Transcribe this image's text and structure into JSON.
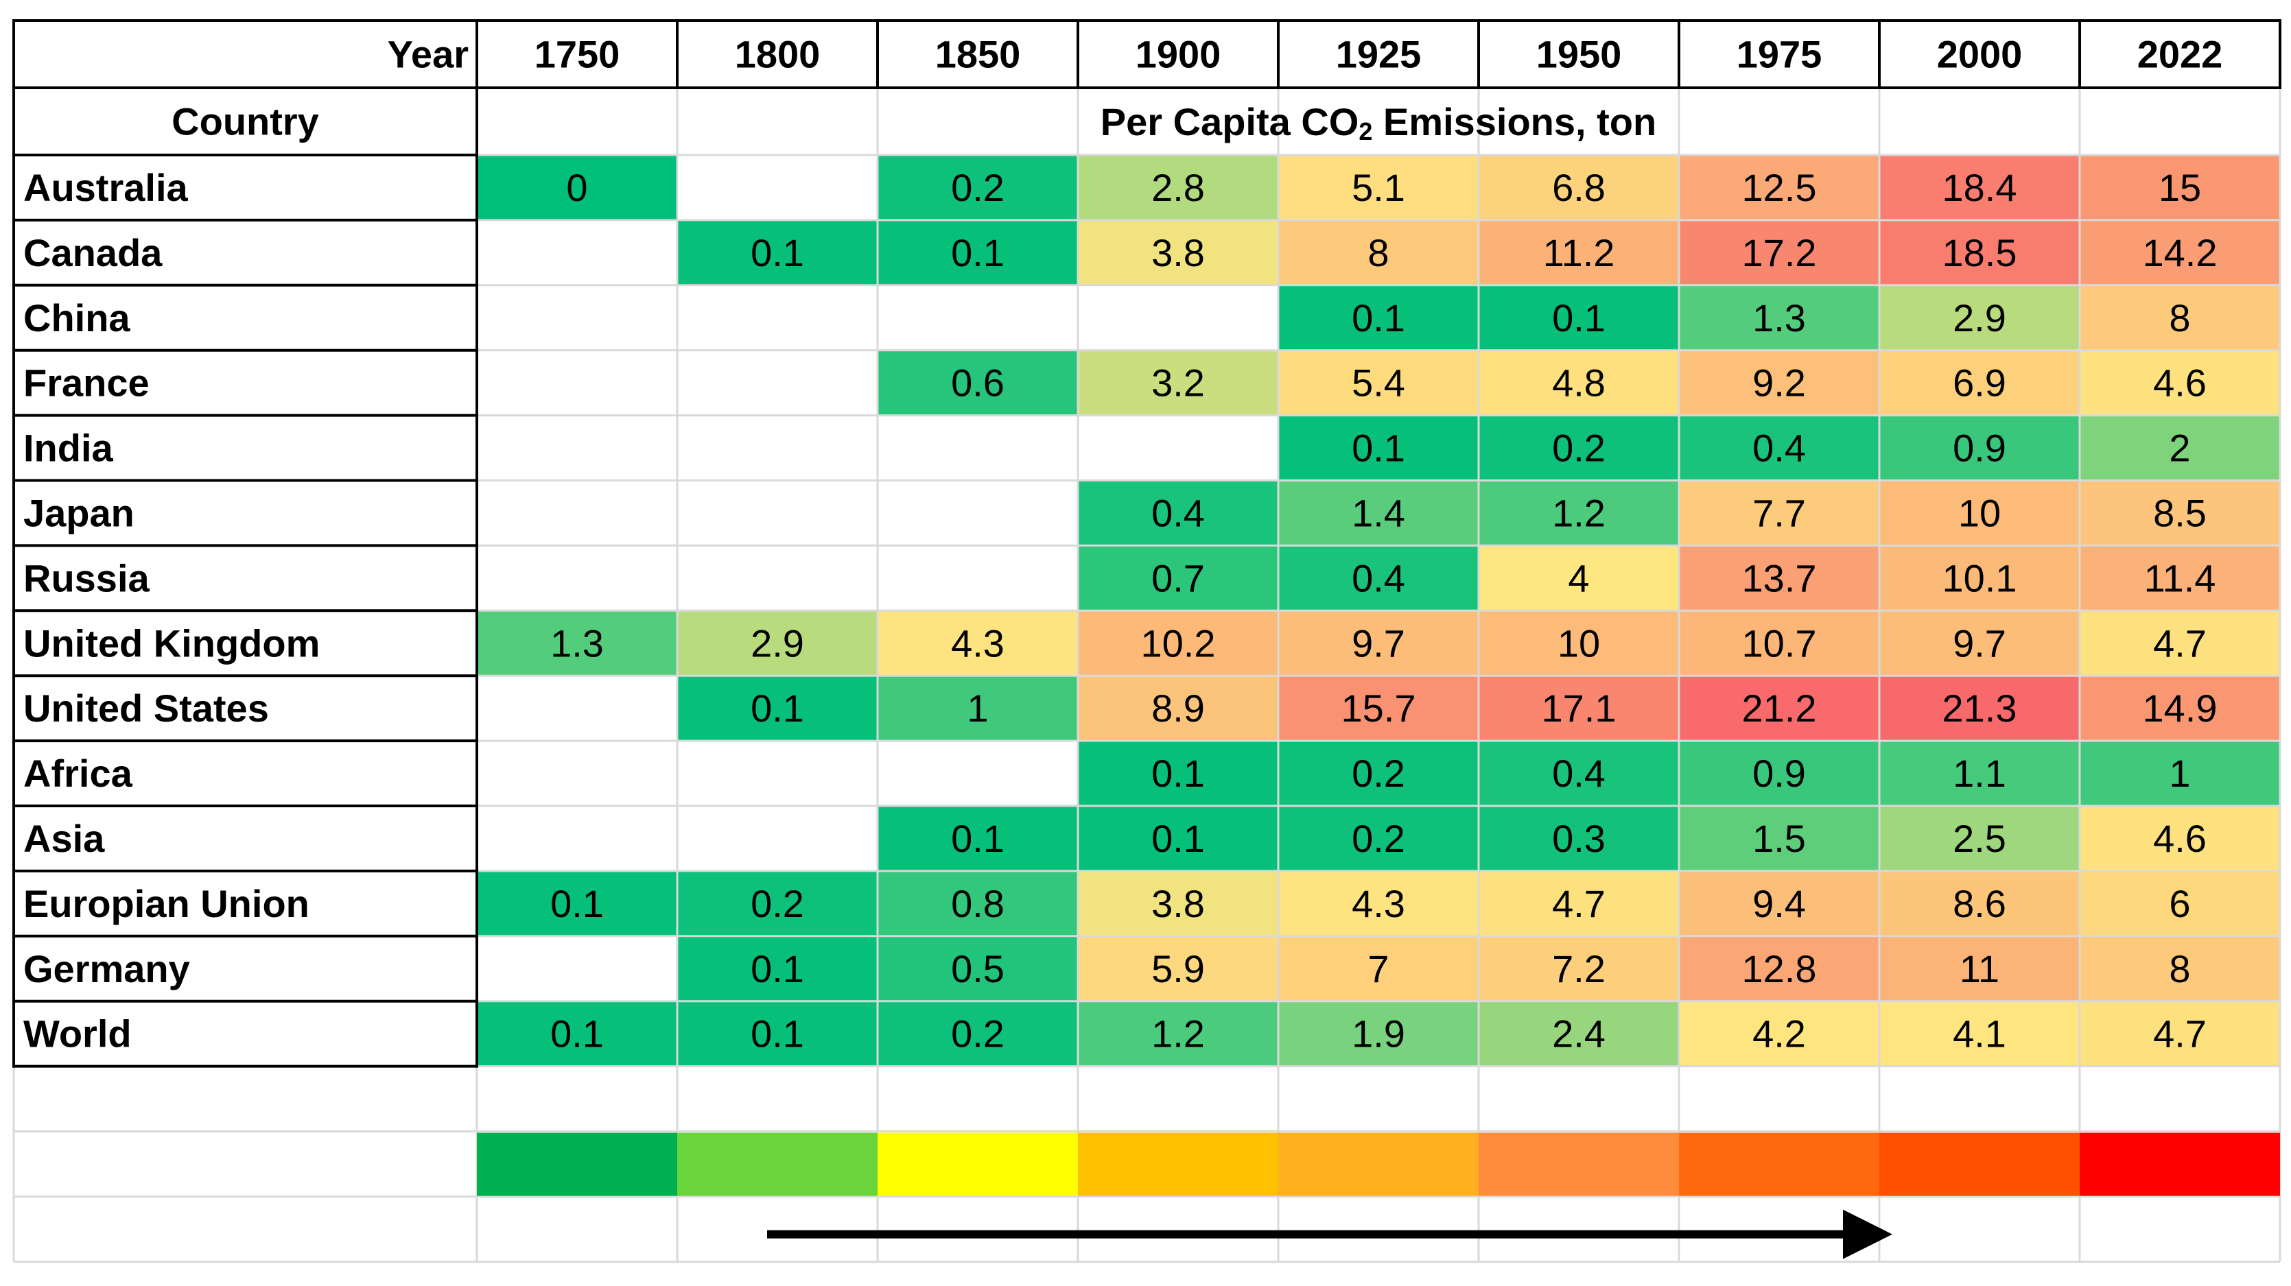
{
  "chart_data": {
    "type": "heatmap",
    "corner_label": "Year",
    "row_header_label": "Country",
    "title": "Per Capita CO",
    "title_subscript": "2",
    "title_suffix": " Emissions, ton",
    "columns": [
      "1750",
      "1800",
      "1850",
      "1900",
      "1925",
      "1950",
      "1975",
      "2000",
      "2022"
    ],
    "rows": [
      {
        "country": "Australia",
        "values": [
          0,
          null,
          0.2,
          2.8,
          5.1,
          6.8,
          12.5,
          18.4,
          15
        ]
      },
      {
        "country": "Canada",
        "values": [
          null,
          0.1,
          0.1,
          3.8,
          8,
          11.2,
          17.2,
          18.5,
          14.2
        ]
      },
      {
        "country": "China",
        "values": [
          null,
          null,
          null,
          null,
          0.1,
          0.1,
          1.3,
          2.9,
          8
        ]
      },
      {
        "country": "France",
        "values": [
          null,
          null,
          0.6,
          3.2,
          5.4,
          4.8,
          9.2,
          6.9,
          4.6
        ]
      },
      {
        "country": "India",
        "values": [
          null,
          null,
          null,
          null,
          0.1,
          0.2,
          0.4,
          0.9,
          2
        ]
      },
      {
        "country": "Japan",
        "values": [
          null,
          null,
          null,
          0.4,
          1.4,
          1.2,
          7.7,
          10,
          8.5
        ]
      },
      {
        "country": "Russia",
        "values": [
          null,
          null,
          null,
          0.7,
          0.4,
          4,
          13.7,
          10.1,
          11.4
        ]
      },
      {
        "country": "United Kingdom",
        "values": [
          1.3,
          2.9,
          4.3,
          10.2,
          9.7,
          10,
          10.7,
          9.7,
          4.7
        ]
      },
      {
        "country": "United States",
        "values": [
          null,
          0.1,
          1,
          8.9,
          15.7,
          17.1,
          21.2,
          21.3,
          14.9
        ]
      },
      {
        "country": "Africa",
        "values": [
          null,
          null,
          null,
          0.1,
          0.2,
          0.4,
          0.9,
          1.1,
          1
        ]
      },
      {
        "country": "Asia",
        "values": [
          null,
          null,
          0.1,
          0.1,
          0.2,
          0.3,
          1.5,
          2.5,
          4.6
        ]
      },
      {
        "country": "Europian Union",
        "values": [
          0.1,
          0.2,
          0.8,
          3.8,
          4.3,
          4.7,
          9.4,
          8.6,
          6
        ]
      },
      {
        "country": "Germany",
        "values": [
          null,
          0.1,
          0.5,
          5.9,
          7,
          7.2,
          12.8,
          11,
          8
        ]
      },
      {
        "country": "World",
        "values": [
          0.1,
          0.1,
          0.2,
          1.2,
          1.9,
          2.4,
          4.2,
          4.1,
          4.7
        ]
      }
    ],
    "color_scale": {
      "min_color": "#00bf7a",
      "mid_color": "#fee680",
      "max_color": "#f8696b"
    },
    "legend_swatches": [
      "#00b050",
      "#6ad43c",
      "#ffff00",
      "#ffc000",
      "#ffb020",
      "#ff8c3c",
      "#ff6a10",
      "#ff5000",
      "#ff0000"
    ],
    "grid_color": "#d9d9d9",
    "border_color": "#000000"
  }
}
